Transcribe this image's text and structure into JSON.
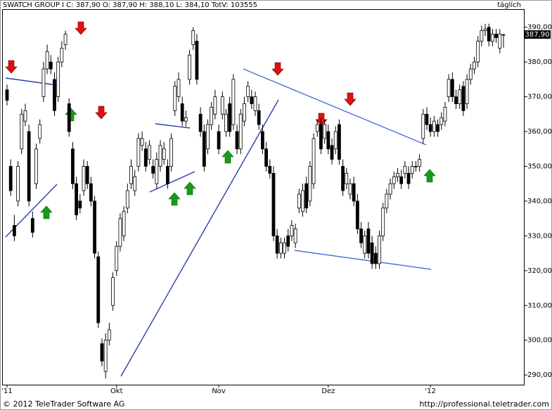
{
  "chart_data": {
    "type": "candlestick",
    "title": "SWATCH GROUP I C: 387,90 O: 387,90 H: 388,10 L: 384,10 TotV: 103555",
    "period": "täglich",
    "last_label": "387,90",
    "copyright": "© 2012 TeleTrader Software AG",
    "url": "http://professional.teletrader.com",
    "up_color": "#ffffff",
    "down_color": "#000000",
    "line_color": "#3a5fcd",
    "grid": false,
    "ylim": [
      287.2,
      395.2
    ],
    "yticks": [
      {
        "value": 290,
        "label": "290,00"
      },
      {
        "value": 300,
        "label": "300,00"
      },
      {
        "value": 310,
        "label": "310,00"
      },
      {
        "value": 320,
        "label": "320,00"
      },
      {
        "value": 330,
        "label": "330,00"
      },
      {
        "value": 340,
        "label": "340,00"
      },
      {
        "value": 350,
        "label": "350,00"
      },
      {
        "value": 360,
        "label": "360,00"
      },
      {
        "value": 370,
        "label": "370,00"
      },
      {
        "value": 380,
        "label": "380,00"
      },
      {
        "value": 390,
        "label": "390,00"
      }
    ],
    "categories": [
      "'11",
      null,
      null,
      null,
      null,
      null,
      null,
      null,
      null,
      null,
      null,
      null,
      null,
      null,
      null,
      null,
      null,
      null,
      null,
      null,
      null,
      null,
      null,
      null,
      null,
      null,
      null,
      null,
      null,
      null,
      "Okt",
      null,
      null,
      null,
      null,
      null,
      null,
      null,
      null,
      null,
      null,
      null,
      null,
      null,
      null,
      null,
      null,
      null,
      null,
      null,
      null,
      null,
      null,
      null,
      null,
      null,
      null,
      null,
      "Nov",
      null,
      null,
      null,
      null,
      null,
      null,
      null,
      null,
      null,
      null,
      null,
      null,
      null,
      null,
      null,
      null,
      null,
      null,
      null,
      null,
      null,
      null,
      null,
      null,
      null,
      null,
      null,
      null,
      null,
      "Dez",
      null,
      null,
      null,
      null,
      null,
      null,
      null,
      null,
      null,
      null,
      null,
      null,
      null,
      null,
      null,
      null,
      null,
      null,
      null,
      null,
      null,
      null,
      null,
      null,
      null,
      null,
      null,
      "'12",
      null,
      null,
      null,
      null,
      null,
      null,
      null,
      null,
      null,
      null,
      null,
      null,
      null,
      null,
      null,
      null,
      null,
      null,
      null,
      null
    ],
    "open": [
      372,
      350,
      333,
      340,
      355,
      363,
      360,
      335,
      345,
      358,
      370,
      378,
      380,
      375,
      370,
      380,
      385,
      368,
      355,
      345,
      340,
      343,
      350,
      345,
      340,
      324,
      299,
      291,
      300,
      310,
      320,
      327,
      330,
      338,
      345,
      343,
      350,
      356,
      355,
      352,
      350,
      345,
      350,
      352,
      350,
      350,
      366,
      370,
      368,
      363,
      375,
      385,
      386,
      365,
      360,
      355,
      362,
      365,
      360,
      365,
      360,
      368,
      362,
      360,
      355,
      363,
      370,
      370,
      366,
      366,
      360,
      355,
      350,
      348,
      330,
      325,
      325,
      330,
      330,
      328,
      338,
      337,
      345,
      340,
      345,
      360,
      362,
      358,
      360,
      356,
      355,
      362,
      350,
      345,
      342,
      345,
      340,
      332,
      325,
      332,
      328,
      325,
      322,
      330,
      338,
      342,
      345,
      347,
      347,
      348,
      348,
      348,
      350,
      350,
      358,
      365,
      362,
      360,
      362,
      362,
      363,
      370,
      375,
      370,
      368,
      373,
      368,
      375,
      378,
      380,
      386,
      389,
      390,
      386,
      388,
      384,
      387.9
    ],
    "high": [
      373.5,
      352,
      336,
      351.5,
      366.5,
      368,
      362,
      337,
      356.5,
      363.5,
      380,
      385,
      382,
      377,
      381.5,
      386,
      389,
      369.5,
      357,
      347,
      342,
      352,
      351.5,
      347,
      341.5,
      325.5,
      300.5,
      302,
      305,
      319.5,
      328.5,
      336.5,
      338.5,
      345,
      352,
      349,
      359.5,
      360,
      357,
      357.5,
      352,
      354,
      357.5,
      357,
      352,
      359.5,
      374.5,
      377,
      370,
      366,
      383.5,
      390,
      388,
      367,
      362,
      363.5,
      368.5,
      372,
      362,
      371.5,
      366.5,
      370,
      376.5,
      362,
      366.5,
      370,
      374.5,
      372,
      371.5,
      368,
      362,
      357,
      352,
      350,
      332,
      329.5,
      329.5,
      332,
      334.5,
      333.5,
      343.5,
      345,
      347,
      351.5,
      359.5,
      363.5,
      364,
      363.5,
      362,
      358,
      361.5,
      363.5,
      352,
      349.5,
      346.5,
      347,
      342,
      334,
      331.5,
      334,
      330,
      327,
      331.5,
      339.5,
      343.5,
      346.5,
      348.5,
      349.5,
      349,
      351.5,
      350,
      351.5,
      351.5,
      353.5,
      366.5,
      367,
      364,
      364.5,
      363.5,
      365.5,
      368.5,
      376.5,
      377,
      372,
      373.5,
      374.5,
      376.5,
      379.5,
      381.5,
      387.5,
      390.5,
      391,
      391,
      389.5,
      389.5,
      389.5,
      388.1
    ],
    "low": [
      367.5,
      341.5,
      328.5,
      338.5,
      353.5,
      361.5,
      338.5,
      329.5,
      343.5,
      356.5,
      368.5,
      376.5,
      376.5,
      364.5,
      368.5,
      378.5,
      383.5,
      358.5,
      343.5,
      334.5,
      336.5,
      341.5,
      343.5,
      338.5,
      323.5,
      303.5,
      292.5,
      289,
      298.5,
      308.5,
      318.5,
      325.5,
      328.5,
      336.5,
      343.5,
      341.5,
      348.5,
      354.5,
      348.5,
      350.5,
      346.5,
      343.5,
      348.5,
      350.5,
      343.5,
      348.5,
      364.5,
      368.5,
      361.5,
      361.5,
      373.5,
      383.5,
      373.5,
      358.5,
      348.5,
      353.5,
      360.5,
      363.5,
      353.5,
      363.5,
      358.5,
      358.5,
      360.5,
      353.5,
      353.5,
      361.5,
      368.5,
      366.5,
      364.5,
      360.5,
      353.5,
      348.5,
      346.5,
      328.5,
      323.5,
      323.5,
      323.5,
      325.5,
      328.5,
      326.5,
      336.5,
      335.5,
      336.5,
      338.5,
      343.5,
      358.5,
      353.5,
      356.5,
      353.5,
      350.5,
      353.5,
      350.5,
      341.5,
      343.5,
      340.5,
      338.5,
      330.5,
      326.5,
      323.5,
      323.5,
      320.5,
      320.5,
      320.5,
      328.5,
      336.5,
      340.5,
      343.5,
      345.5,
      343.5,
      346.5,
      343.5,
      346.5,
      348.5,
      348.5,
      356.5,
      360.5,
      358.5,
      358.5,
      358.5,
      360.5,
      361.5,
      368.5,
      368.5,
      366.5,
      366.5,
      364.5,
      366.5,
      373.5,
      376.5,
      378.5,
      384.5,
      387.5,
      384.5,
      384.5,
      385.5,
      382.5,
      384.1
    ],
    "close": [
      369,
      343,
      330,
      350,
      365,
      366,
      340,
      331,
      355,
      362,
      378,
      383,
      378,
      366,
      380,
      384,
      388,
      360,
      345,
      336,
      338,
      350,
      345,
      340,
      325,
      305,
      294,
      300,
      303,
      318,
      327,
      335,
      337,
      343,
      350,
      347,
      358,
      358,
      350,
      356,
      348,
      352,
      356,
      355,
      345,
      358,
      373,
      375,
      363,
      364,
      382,
      389,
      375,
      360,
      350,
      362,
      367,
      370,
      355,
      370,
      365,
      360,
      375,
      355,
      365,
      368,
      373,
      368,
      370,
      362,
      355,
      350,
      348,
      330,
      325,
      328,
      328,
      327,
      333,
      332,
      342,
      343,
      338,
      350,
      358,
      362,
      355,
      362,
      355,
      352,
      360,
      352,
      343,
      348,
      345,
      340,
      332,
      328,
      330,
      325,
      322,
      322,
      330,
      338,
      342,
      345,
      347,
      348,
      345,
      350,
      345,
      350,
      350,
      352,
      365,
      362,
      360,
      363,
      360,
      364,
      367,
      375,
      370,
      368,
      372,
      366,
      375,
      378,
      380,
      386,
      389,
      389.5,
      386,
      388,
      387,
      388,
      387.9
    ]
  }
}
